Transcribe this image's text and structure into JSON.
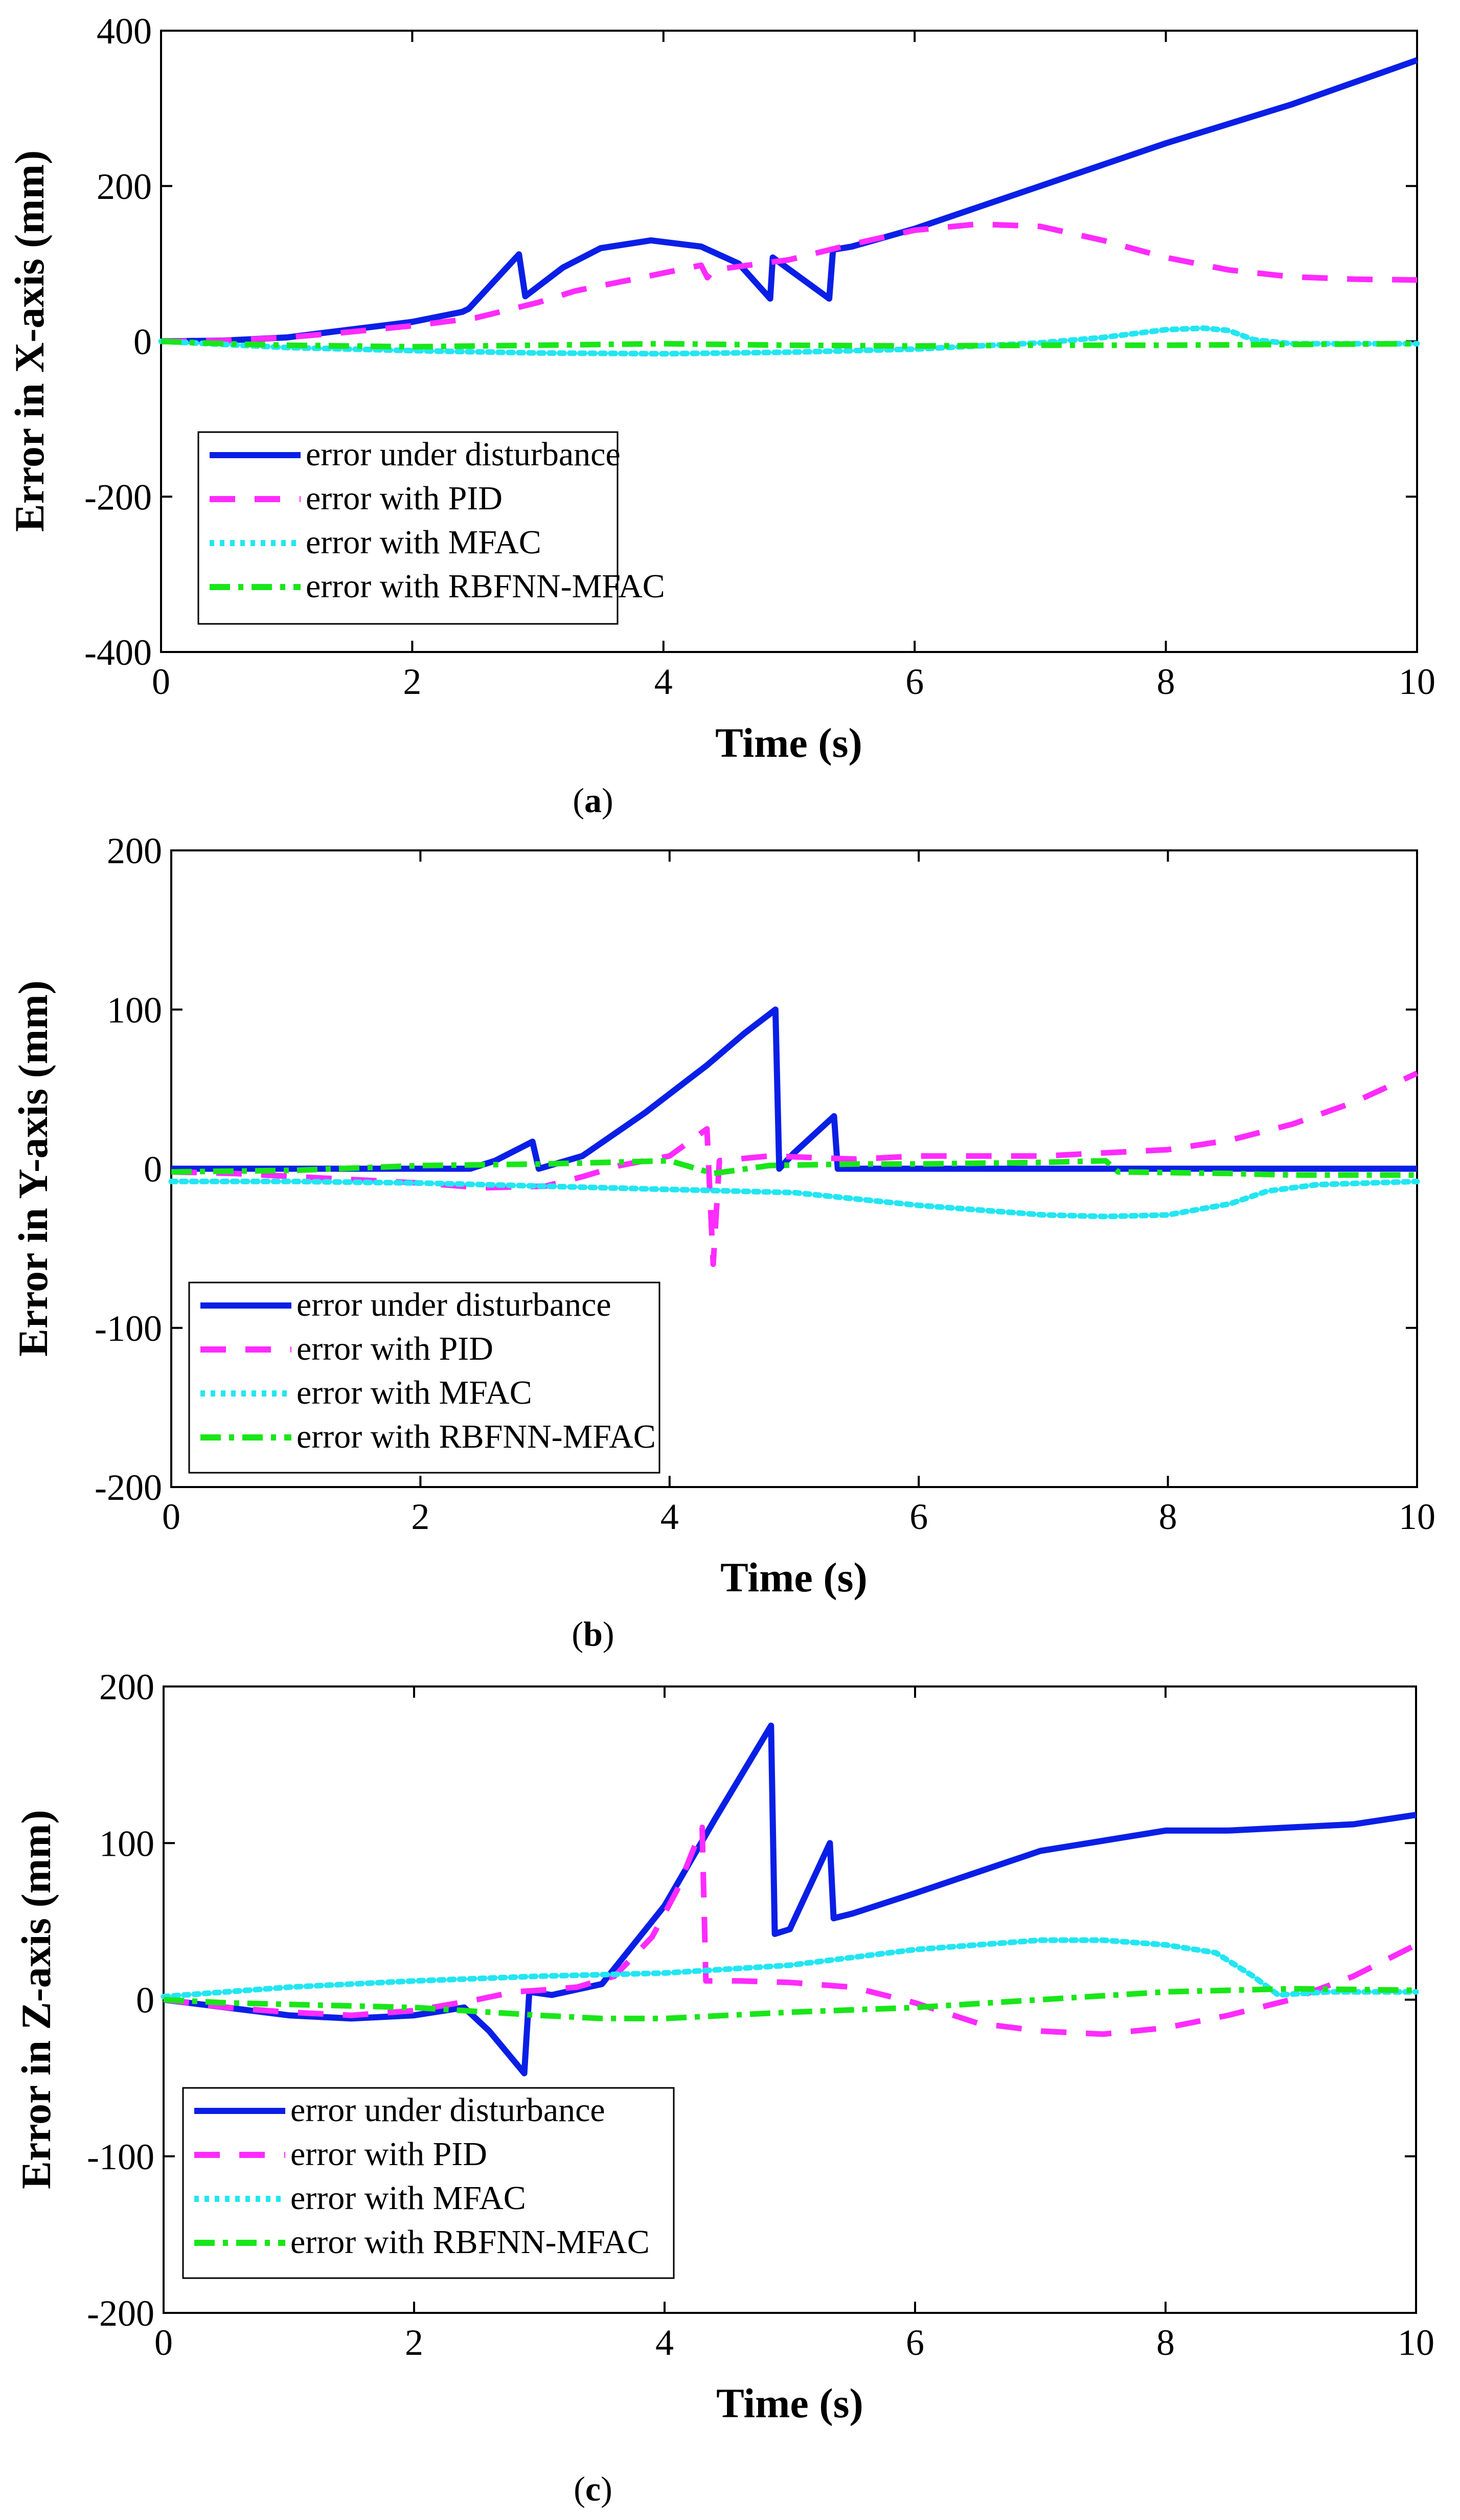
{
  "figure": {
    "panels": [
      "a",
      "b",
      "c"
    ]
  },
  "legend": {
    "entries": [
      {
        "label": "error under disturbance",
        "color": "#0a1fe6",
        "style": "solid"
      },
      {
        "label": "error with PID",
        "color": "#ff2bff",
        "style": "dashed"
      },
      {
        "label": "error with MFAC",
        "color": "#22e6f2",
        "style": "dotted"
      },
      {
        "label": "error with RBFNN-MFAC",
        "color": "#19e619",
        "style": "dashdot"
      }
    ]
  },
  "chart_data": [
    {
      "type": "line",
      "panel": "(a)",
      "caption_letter": "a",
      "xlabel": "Time (s)",
      "ylabel": "Error in X-axis (mm)",
      "xlim": [
        0,
        10
      ],
      "ylim": [
        -400,
        400
      ],
      "xticks": [
        0,
        2,
        4,
        6,
        8,
        10
      ],
      "yticks": [
        -400,
        -200,
        0,
        200,
        400
      ],
      "legend_position": "lower-left",
      "series": [
        {
          "name": "error under disturbance",
          "points": [
            [
              0,
              0
            ],
            [
              0.5,
              1
            ],
            [
              1,
              5
            ],
            [
              1.5,
              15
            ],
            [
              2,
              25
            ],
            [
              2.4,
              38
            ],
            [
              2.45,
              42
            ],
            [
              2.85,
              112
            ],
            [
              2.9,
              58
            ],
            [
              3.2,
              95
            ],
            [
              3.5,
              120
            ],
            [
              3.9,
              130
            ],
            [
              4.3,
              122
            ],
            [
              4.6,
              100
            ],
            [
              4.85,
              55
            ],
            [
              4.87,
              108
            ],
            [
              5.32,
              55
            ],
            [
              5.35,
              118
            ],
            [
              5.5,
              122
            ],
            [
              6,
              145
            ],
            [
              7,
              200
            ],
            [
              8,
              255
            ],
            [
              9,
              305
            ],
            [
              10,
              362
            ]
          ]
        },
        {
          "name": "error with PID",
          "points": [
            [
              0,
              0
            ],
            [
              0.5,
              1
            ],
            [
              1,
              5
            ],
            [
              1.5,
              12
            ],
            [
              2,
              20
            ],
            [
              2.5,
              30
            ],
            [
              3,
              50
            ],
            [
              3.3,
              65
            ],
            [
              3.7,
              78
            ],
            [
              4,
              88
            ],
            [
              4.3,
              98
            ],
            [
              4.35,
              82
            ],
            [
              4.4,
              92
            ],
            [
              5,
              105
            ],
            [
              5.5,
              125
            ],
            [
              6,
              143
            ],
            [
              6.5,
              151
            ],
            [
              7,
              148
            ],
            [
              7.5,
              130
            ],
            [
              8,
              108
            ],
            [
              8.5,
              92
            ],
            [
              9,
              83
            ],
            [
              9.5,
              80
            ],
            [
              10,
              79
            ]
          ]
        },
        {
          "name": "error with MFAC",
          "points": [
            [
              0,
              0
            ],
            [
              1,
              -8
            ],
            [
              2,
              -12
            ],
            [
              3,
              -15
            ],
            [
              4,
              -16
            ],
            [
              5,
              -14
            ],
            [
              6,
              -10
            ],
            [
              7,
              -2
            ],
            [
              7.5,
              5
            ],
            [
              8,
              15
            ],
            [
              8.3,
              17
            ],
            [
              8.5,
              14
            ],
            [
              8.7,
              2
            ],
            [
              9,
              -3
            ],
            [
              9.5,
              -3
            ],
            [
              10,
              -3
            ]
          ]
        },
        {
          "name": "error with RBFNN-MFAC",
          "points": [
            [
              0,
              0
            ],
            [
              0.5,
              -3
            ],
            [
              1,
              -5
            ],
            [
              2,
              -7
            ],
            [
              3,
              -5
            ],
            [
              4,
              -3
            ],
            [
              5,
              -5
            ],
            [
              6,
              -6
            ],
            [
              7,
              -5
            ],
            [
              8,
              -5
            ],
            [
              9,
              -4
            ],
            [
              10,
              -3
            ]
          ]
        }
      ]
    },
    {
      "type": "line",
      "panel": "(b)",
      "caption_letter": "b",
      "xlabel": "Time (s)",
      "ylabel": "Error in Y-axis (mm)",
      "xlim": [
        0,
        10
      ],
      "ylim": [
        -200,
        200
      ],
      "xticks": [
        0,
        2,
        4,
        6,
        8,
        10
      ],
      "yticks": [
        -200,
        -100,
        0,
        100,
        200
      ],
      "legend_position": "lower-left",
      "series": [
        {
          "name": "error under disturbance",
          "points": [
            [
              0,
              0
            ],
            [
              1,
              0
            ],
            [
              2,
              0
            ],
            [
              2.4,
              0
            ],
            [
              2.6,
              5
            ],
            [
              2.9,
              17
            ],
            [
              2.95,
              0
            ],
            [
              3.3,
              8
            ],
            [
              3.8,
              35
            ],
            [
              4.3,
              65
            ],
            [
              4.6,
              85
            ],
            [
              4.85,
              100
            ],
            [
              4.88,
              0
            ],
            [
              5.0,
              10
            ],
            [
              5.32,
              33
            ],
            [
              5.35,
              0
            ],
            [
              6,
              0
            ],
            [
              8,
              0
            ],
            [
              10,
              0
            ]
          ]
        },
        {
          "name": "error with PID",
          "points": [
            [
              0,
              -2
            ],
            [
              0.5,
              -3
            ],
            [
              1,
              -5
            ],
            [
              1.5,
              -7
            ],
            [
              2,
              -9
            ],
            [
              2.5,
              -12
            ],
            [
              3,
              -11
            ],
            [
              3.3,
              -5
            ],
            [
              3.6,
              2
            ],
            [
              4.0,
              8
            ],
            [
              4.3,
              25
            ],
            [
              4.35,
              -60
            ],
            [
              4.4,
              5
            ],
            [
              4.8,
              8
            ],
            [
              5.5,
              6
            ],
            [
              6,
              8
            ],
            [
              7,
              8
            ],
            [
              8,
              12
            ],
            [
              8.5,
              18
            ],
            [
              9,
              28
            ],
            [
              9.5,
              42
            ],
            [
              10,
              60
            ]
          ]
        },
        {
          "name": "error with MFAC",
          "points": [
            [
              0,
              -8
            ],
            [
              1,
              -8
            ],
            [
              2,
              -9
            ],
            [
              3,
              -11
            ],
            [
              4,
              -13
            ],
            [
              5,
              -15
            ],
            [
              6,
              -23
            ],
            [
              7,
              -29
            ],
            [
              7.5,
              -30
            ],
            [
              8,
              -29
            ],
            [
              8.5,
              -22
            ],
            [
              8.8,
              -14
            ],
            [
              9.2,
              -10
            ],
            [
              10,
              -8
            ]
          ]
        },
        {
          "name": "error with RBFNN-MFAC",
          "points": [
            [
              0,
              -2
            ],
            [
              1,
              -1
            ],
            [
              2,
              2
            ],
            [
              3,
              3
            ],
            [
              4,
              5
            ],
            [
              4.35,
              -3
            ],
            [
              4.8,
              2
            ],
            [
              5.5,
              3
            ],
            [
              6,
              3
            ],
            [
              7,
              4
            ],
            [
              7.5,
              5
            ],
            [
              7.6,
              -2
            ],
            [
              8.5,
              -3
            ],
            [
              9,
              -4
            ],
            [
              10,
              -4
            ]
          ]
        }
      ]
    },
    {
      "type": "line",
      "panel": "(c)",
      "caption_letter": "c",
      "xlabel": "Time (s)",
      "ylabel": "Error in Z-axis (mm)",
      "xlim": [
        0,
        10
      ],
      "ylim": [
        -200,
        200
      ],
      "xticks": [
        0,
        2,
        4,
        6,
        8,
        10
      ],
      "yticks": [
        -200,
        -100,
        0,
        100,
        200
      ],
      "legend_position": "lower-left",
      "series": [
        {
          "name": "error under disturbance",
          "points": [
            [
              0,
              0
            ],
            [
              0.5,
              -5
            ],
            [
              1,
              -10
            ],
            [
              1.5,
              -12
            ],
            [
              2,
              -10
            ],
            [
              2.4,
              -5
            ],
            [
              2.6,
              -20
            ],
            [
              2.88,
              -47
            ],
            [
              2.92,
              5
            ],
            [
              3.1,
              3
            ],
            [
              3.5,
              10
            ],
            [
              4,
              60
            ],
            [
              4.4,
              115
            ],
            [
              4.85,
              175
            ],
            [
              4.88,
              42
            ],
            [
              5.0,
              45
            ],
            [
              5.32,
              100
            ],
            [
              5.35,
              52
            ],
            [
              5.5,
              55
            ],
            [
              6,
              68
            ],
            [
              7,
              95
            ],
            [
              8,
              108
            ],
            [
              8.5,
              108
            ],
            [
              9,
              110
            ],
            [
              9.5,
              112
            ],
            [
              10,
              118
            ]
          ]
        },
        {
          "name": "error with PID",
          "points": [
            [
              0,
              0
            ],
            [
              0.5,
              -5
            ],
            [
              1,
              -8
            ],
            [
              1.5,
              -10
            ],
            [
              2,
              -7
            ],
            [
              2.5,
              0
            ],
            [
              2.8,
              5
            ],
            [
              3,
              6
            ],
            [
              3.3,
              8
            ],
            [
              3.6,
              15
            ],
            [
              3.9,
              40
            ],
            [
              4.1,
              70
            ],
            [
              4.3,
              110
            ],
            [
              4.33,
              12
            ],
            [
              4.6,
              12
            ],
            [
              5,
              11
            ],
            [
              5.5,
              8
            ],
            [
              6,
              -2
            ],
            [
              6.5,
              -15
            ],
            [
              7,
              -20
            ],
            [
              7.5,
              -22
            ],
            [
              8,
              -18
            ],
            [
              8.5,
              -10
            ],
            [
              9,
              0
            ],
            [
              9.5,
              15
            ],
            [
              10,
              35
            ]
          ]
        },
        {
          "name": "error with MFAC",
          "points": [
            [
              0,
              2
            ],
            [
              0.5,
              5
            ],
            [
              1,
              8
            ],
            [
              2,
              12
            ],
            [
              3,
              15
            ],
            [
              4,
              17
            ],
            [
              5,
              22
            ],
            [
              6,
              32
            ],
            [
              7,
              38
            ],
            [
              7.5,
              38
            ],
            [
              8,
              35
            ],
            [
              8.4,
              30
            ],
            [
              8.7,
              15
            ],
            [
              8.9,
              3
            ],
            [
              9.3,
              5
            ],
            [
              10,
              5
            ]
          ]
        },
        {
          "name": "error with RBFNN-MFAC",
          "points": [
            [
              0,
              0
            ],
            [
              0.5,
              -2
            ],
            [
              1,
              -3
            ],
            [
              2,
              -5
            ],
            [
              3,
              -10
            ],
            [
              3.5,
              -12
            ],
            [
              4,
              -12
            ],
            [
              4.5,
              -10
            ],
            [
              5,
              -8
            ],
            [
              6,
              -5
            ],
            [
              7,
              0
            ],
            [
              8,
              5
            ],
            [
              9,
              7
            ],
            [
              10,
              6
            ]
          ]
        }
      ]
    }
  ]
}
